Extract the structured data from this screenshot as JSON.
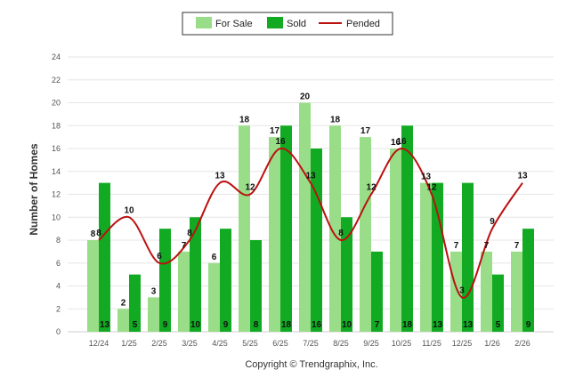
{
  "chart_data": {
    "type": "bar",
    "title": "",
    "ylabel": "Number of Homes",
    "xlabel": "",
    "ylim": [
      0,
      24
    ],
    "yticks": [
      0,
      2,
      4,
      6,
      8,
      10,
      12,
      14,
      16,
      18,
      20,
      22,
      24
    ],
    "grid": true,
    "legend_position": "top-center",
    "categories": [
      "12/24",
      "1/25",
      "2/25",
      "3/25",
      "4/25",
      "5/25",
      "6/25",
      "7/25",
      "8/25",
      "9/25",
      "10/25",
      "11/25",
      "12/25",
      "1/26",
      "2/26"
    ],
    "series": [
      {
        "name": "For Sale",
        "type": "bar",
        "color": "#99dd88",
        "values": [
          8,
          2,
          3,
          7,
          6,
          18,
          17,
          20,
          18,
          17,
          16,
          13,
          7,
          7,
          7
        ]
      },
      {
        "name": "Sold",
        "type": "bar",
        "color": "#11aa22",
        "values": [
          13,
          5,
          9,
          10,
          9,
          8,
          18,
          16,
          10,
          7,
          18,
          13,
          13,
          5,
          9
        ]
      },
      {
        "name": "Pended",
        "type": "line",
        "color": "#bb1111",
        "values": [
          8,
          10,
          6,
          8,
          13,
          12,
          16,
          13,
          8,
          12,
          16,
          12,
          3,
          9,
          13
        ]
      }
    ]
  },
  "footer": {
    "copyright": "Copyright © Trendgraphix, Inc."
  }
}
